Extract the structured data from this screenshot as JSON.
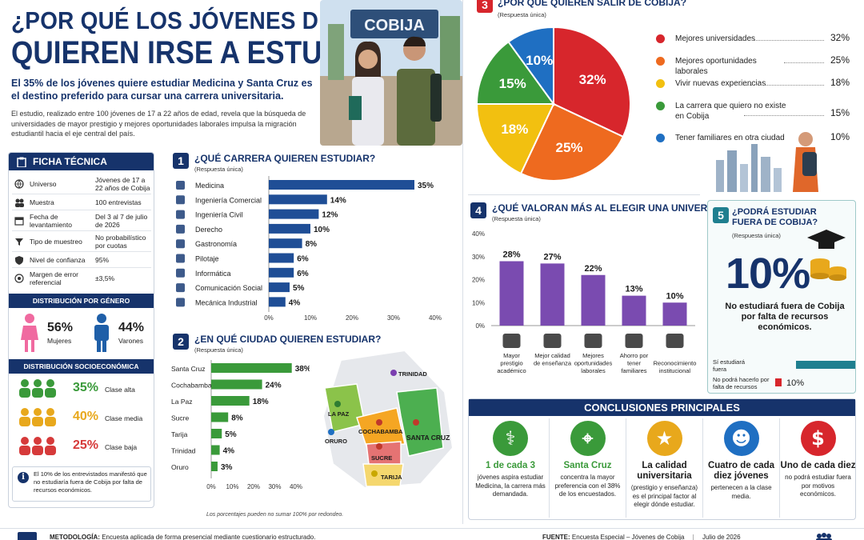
{
  "title": {
    "line1": "¿POR QUÉ LOS JÓVENES DE COBIJA",
    "line2": "QUIEREN IRSE A ESTUDIAR?",
    "lead": "El 35% de los jóvenes quiere estudiar Medicina y Santa Cruz es el destino preferido para cursar una carrera universitaria.",
    "intro": "El estudio, realizado entre 100 jóvenes de 17 a 22 años de edad, revela que la búsqueda de universidades de mayor prestigio y mejores oportunidades laborales impulsa la migración estudiantil hacia el eje central del país.",
    "photo_sign": "COBIJA"
  },
  "ficha": {
    "title": "FICHA TÉCNICA",
    "rows": [
      {
        "label": "Universo",
        "value": "Jóvenes de 17 a 22 años de Cobija",
        "icon": "globe-icon"
      },
      {
        "label": "Muestra",
        "value": "100 entrevistas",
        "icon": "people-icon"
      },
      {
        "label": "Fecha de levantamiento",
        "value": "Del 3 al 7 de julio de 2026",
        "icon": "calendar-icon"
      },
      {
        "label": "Tipo de muestreo",
        "value": "No probabilístico por cuotas",
        "icon": "filter-icon"
      },
      {
        "label": "Nivel de confianza",
        "value": "95%",
        "icon": "shield-icon"
      },
      {
        "label": "Margen de error referencial",
        "value": "±3,5%",
        "icon": "target-icon"
      }
    ],
    "gender": {
      "title": "DISTRIBUCIÓN POR GÉNERO",
      "women_pct": "56%",
      "women_label": "Mujeres",
      "men_pct": "44%",
      "men_label": "Varones"
    },
    "socio": {
      "title": "DISTRIBUCIÓN SOCIOECONÓMICA",
      "rows": [
        {
          "pct": "35%",
          "label": "Clase alta",
          "color": "#3a9a3a"
        },
        {
          "pct": "40%",
          "label": "Clase media",
          "color": "#e8a81c"
        },
        {
          "pct": "25%",
          "label": "Clase baja",
          "color": "#d63a3a"
        }
      ]
    },
    "note": "El 10% de los entrevistados manifestó que no estudiaría fuera de Cobija por falta de recursos económicos."
  },
  "chart_data": [
    {
      "type": "bar",
      "orientation": "horizontal",
      "number": "1",
      "title": "¿QUÉ CARRERA QUIEREN ESTUDIAR?",
      "subtitle": "(Respuesta única)",
      "categories": [
        "Medicina",
        "Ingeniería Comercial",
        "Ingeniería Civil",
        "Derecho",
        "Gastronomía",
        "Pilotaje",
        "Informática",
        "Comunicación Social",
        "Mecánica Industrial"
      ],
      "values": [
        35,
        14,
        12,
        10,
        8,
        6,
        6,
        5,
        4
      ],
      "labels": [
        "35%",
        "14%",
        "12%",
        "10%",
        "8%",
        "6%",
        "6%",
        "5%",
        "4%"
      ],
      "xlim": [
        0,
        40
      ],
      "ticks": [
        "0%",
        "10%",
        "20%",
        "30%",
        "40%"
      ],
      "color": "#1f4e96"
    },
    {
      "type": "bar",
      "orientation": "horizontal",
      "number": "2",
      "title": "¿EN QUÉ CIUDAD QUIEREN ESTUDIAR?",
      "subtitle": "(Respuesta única)",
      "categories": [
        "Santa Cruz",
        "Cochabamba",
        "La Paz",
        "Sucre",
        "Tarija",
        "Trinidad",
        "Oruro"
      ],
      "values": [
        38,
        24,
        18,
        8,
        5,
        4,
        3
      ],
      "labels": [
        "38%",
        "24%",
        "18%",
        "8%",
        "5%",
        "4%",
        "3%"
      ],
      "xlim": [
        0,
        40
      ],
      "ticks": [
        "0%",
        "10%",
        "20%",
        "30%",
        "40%"
      ],
      "color": "#3a9a3a",
      "note": "Los porcentajes pueden no sumar 100% por redondeo.",
      "map_labels": [
        "TRINIDAD",
        "LA PAZ",
        "COCHABAMBA",
        "SANTA CRUZ",
        "ORURO",
        "SUCRE",
        "TARIJA"
      ]
    },
    {
      "type": "pie",
      "number": "3",
      "title": "¿POR QUÉ QUIEREN SALIR DE COBIJA?",
      "subtitle": "(Respuesta única)",
      "categories": [
        "Mejores universidades",
        "Mejores oportunidades laborales",
        "Vivir nuevas experiencias",
        "La carrera que quiero no existe en Cobija",
        "Tener familiares en otra ciudad"
      ],
      "values": [
        32,
        25,
        18,
        15,
        10
      ],
      "labels": [
        "32%",
        "25%",
        "18%",
        "15%",
        "10%"
      ],
      "colors": [
        "#d7262c",
        "#ee6a1f",
        "#f2c010",
        "#3a9a3a",
        "#1f6fc2"
      ]
    },
    {
      "type": "bar",
      "orientation": "vertical",
      "number": "4",
      "title": "¿QUÉ VALORAN MÁS AL ELEGIR UNA UNIVERSIDAD?",
      "subtitle": "(Respuesta única)",
      "categories": [
        "Mayor prestigio académico",
        "Mejor calidad de enseñanza",
        "Mejores oportunidades laborales",
        "Ahorro por tener familiares",
        "Reconocimiento institucional"
      ],
      "values": [
        28,
        27,
        22,
        13,
        10
      ],
      "labels": [
        "28%",
        "27%",
        "22%",
        "13%",
        "10%"
      ],
      "ylim": [
        0,
        40
      ],
      "ticks": [
        "0%",
        "10%",
        "20%",
        "30%",
        "40%"
      ],
      "color": "#7a4bb0",
      "icons": [
        "graduation-cap-icon",
        "book-icon",
        "briefcase-icon",
        "family-icon",
        "award-icon"
      ]
    },
    {
      "type": "bar",
      "orientation": "horizontal",
      "number": "5",
      "title": "¿PODRÁ ESTUDIAR FUERA DE COBIJA?",
      "subtitle": "(Respuesta única)",
      "big_value": "10%",
      "big_text": "No estudiará fuera de Cobija por falta de recursos económicos.",
      "categories": [
        "Sí estudiará fuera",
        "No podrá hacerlo por falta de recursos"
      ],
      "values": [
        90,
        10
      ],
      "labels": [
        "90%",
        "10%"
      ],
      "colors": [
        "#1f7f8f",
        "#d7262c"
      ]
    }
  ],
  "conclusions": {
    "title": "CONCLUSIONES PRINCIPALES",
    "items": [
      {
        "head": "1 de cada 3",
        "text": "jóvenes aspira estudiar Medicina, la carrera más demandada.",
        "color": "#3a9a3a",
        "head_color": "#3a9a3a",
        "icon": "stethoscope-icon"
      },
      {
        "head": "Santa Cruz",
        "text": "concentra la mayor preferencia con el 38% de los encuestados.",
        "color": "#3a9a3a",
        "head_color": "#3a9a3a",
        "icon": "location-pin-icon"
      },
      {
        "head": "La calidad universitaria",
        "text": "(prestigio y enseñanza) es el principal factor al elegir dónde estudiar.",
        "color": "#e8a81c",
        "head_color": "#1a1a1a",
        "icon": "star-icon"
      },
      {
        "head": "Cuatro de cada diez jóvenes",
        "text": "pertenecen a la clase media.",
        "color": "#1f6fc2",
        "head_color": "#1a1a1a",
        "icon": "group-icon"
      },
      {
        "head": "Uno de cada diez",
        "text": "no podrá estudiar fuera por motivos económicos.",
        "color": "#d7262c",
        "head_color": "#1a1a1a",
        "icon": "dollar-icon"
      }
    ]
  },
  "footer": {
    "metodologia_label": "METODOLOGÍA:",
    "metodologia": "Encuesta aplicada de forma presencial mediante cuestionario estructurado.",
    "fuente_label": "FUENTE:",
    "fuente": "Encuesta Especial – Jóvenes de Cobija",
    "fecha": "Julio de 2026"
  }
}
